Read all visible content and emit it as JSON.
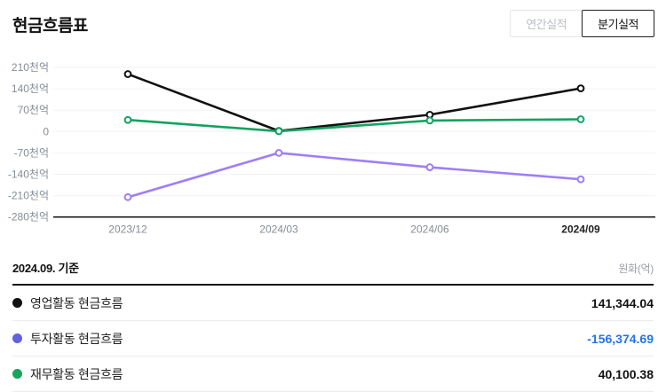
{
  "header": {
    "title": "현금흐름표"
  },
  "toolbar": {
    "annual_label": "연간실적",
    "quarterly_label": "분기실적",
    "active": "quarterly"
  },
  "chart_data": {
    "type": "line",
    "categories": [
      "2023/12",
      "2024/03",
      "2024/06",
      "2024/09"
    ],
    "highlighted_category": "2024/09",
    "series": [
      {
        "name": "영업활동 현금흐름",
        "color": "#111111",
        "values": [
          188,
          2,
          55,
          141.3
        ]
      },
      {
        "name": "투자활동 현금흐름",
        "color": "#9E7EF9",
        "values": [
          -215,
          -70,
          -117,
          -156.4
        ]
      },
      {
        "name": "재무활동 현금흐름",
        "color": "#12A35F",
        "values": [
          38,
          1,
          36,
          40.1
        ]
      }
    ],
    "draw_order": [
      0,
      1,
      2
    ],
    "unit_suffix": "천억",
    "y_ticks": [
      210,
      140,
      70,
      0,
      -70,
      -140,
      -210,
      -280
    ],
    "ylim": [
      -280,
      210
    ],
    "grid": true,
    "grid_color": "#f1f2f4",
    "axis_line_color": "#1a1a1a",
    "tick_label_color": "#848d96",
    "highlight_label_color": "#222222",
    "legend_position": "table-below"
  },
  "table": {
    "as_of": "2024.09. 기준",
    "unit": "원화(억)",
    "rows": [
      {
        "label": "영업활동 현금흐름",
        "value": "141,344.04",
        "dot_color": "#111111",
        "value_color": "#111111"
      },
      {
        "label": "투자활동 현금흐름",
        "value": "-156,374.69",
        "dot_color": "#6161E1",
        "value_color": "#2473EE"
      },
      {
        "label": "재무활동 현금흐름",
        "value": "40,100.38",
        "dot_color": "#18A45C",
        "value_color": "#111111"
      }
    ]
  }
}
